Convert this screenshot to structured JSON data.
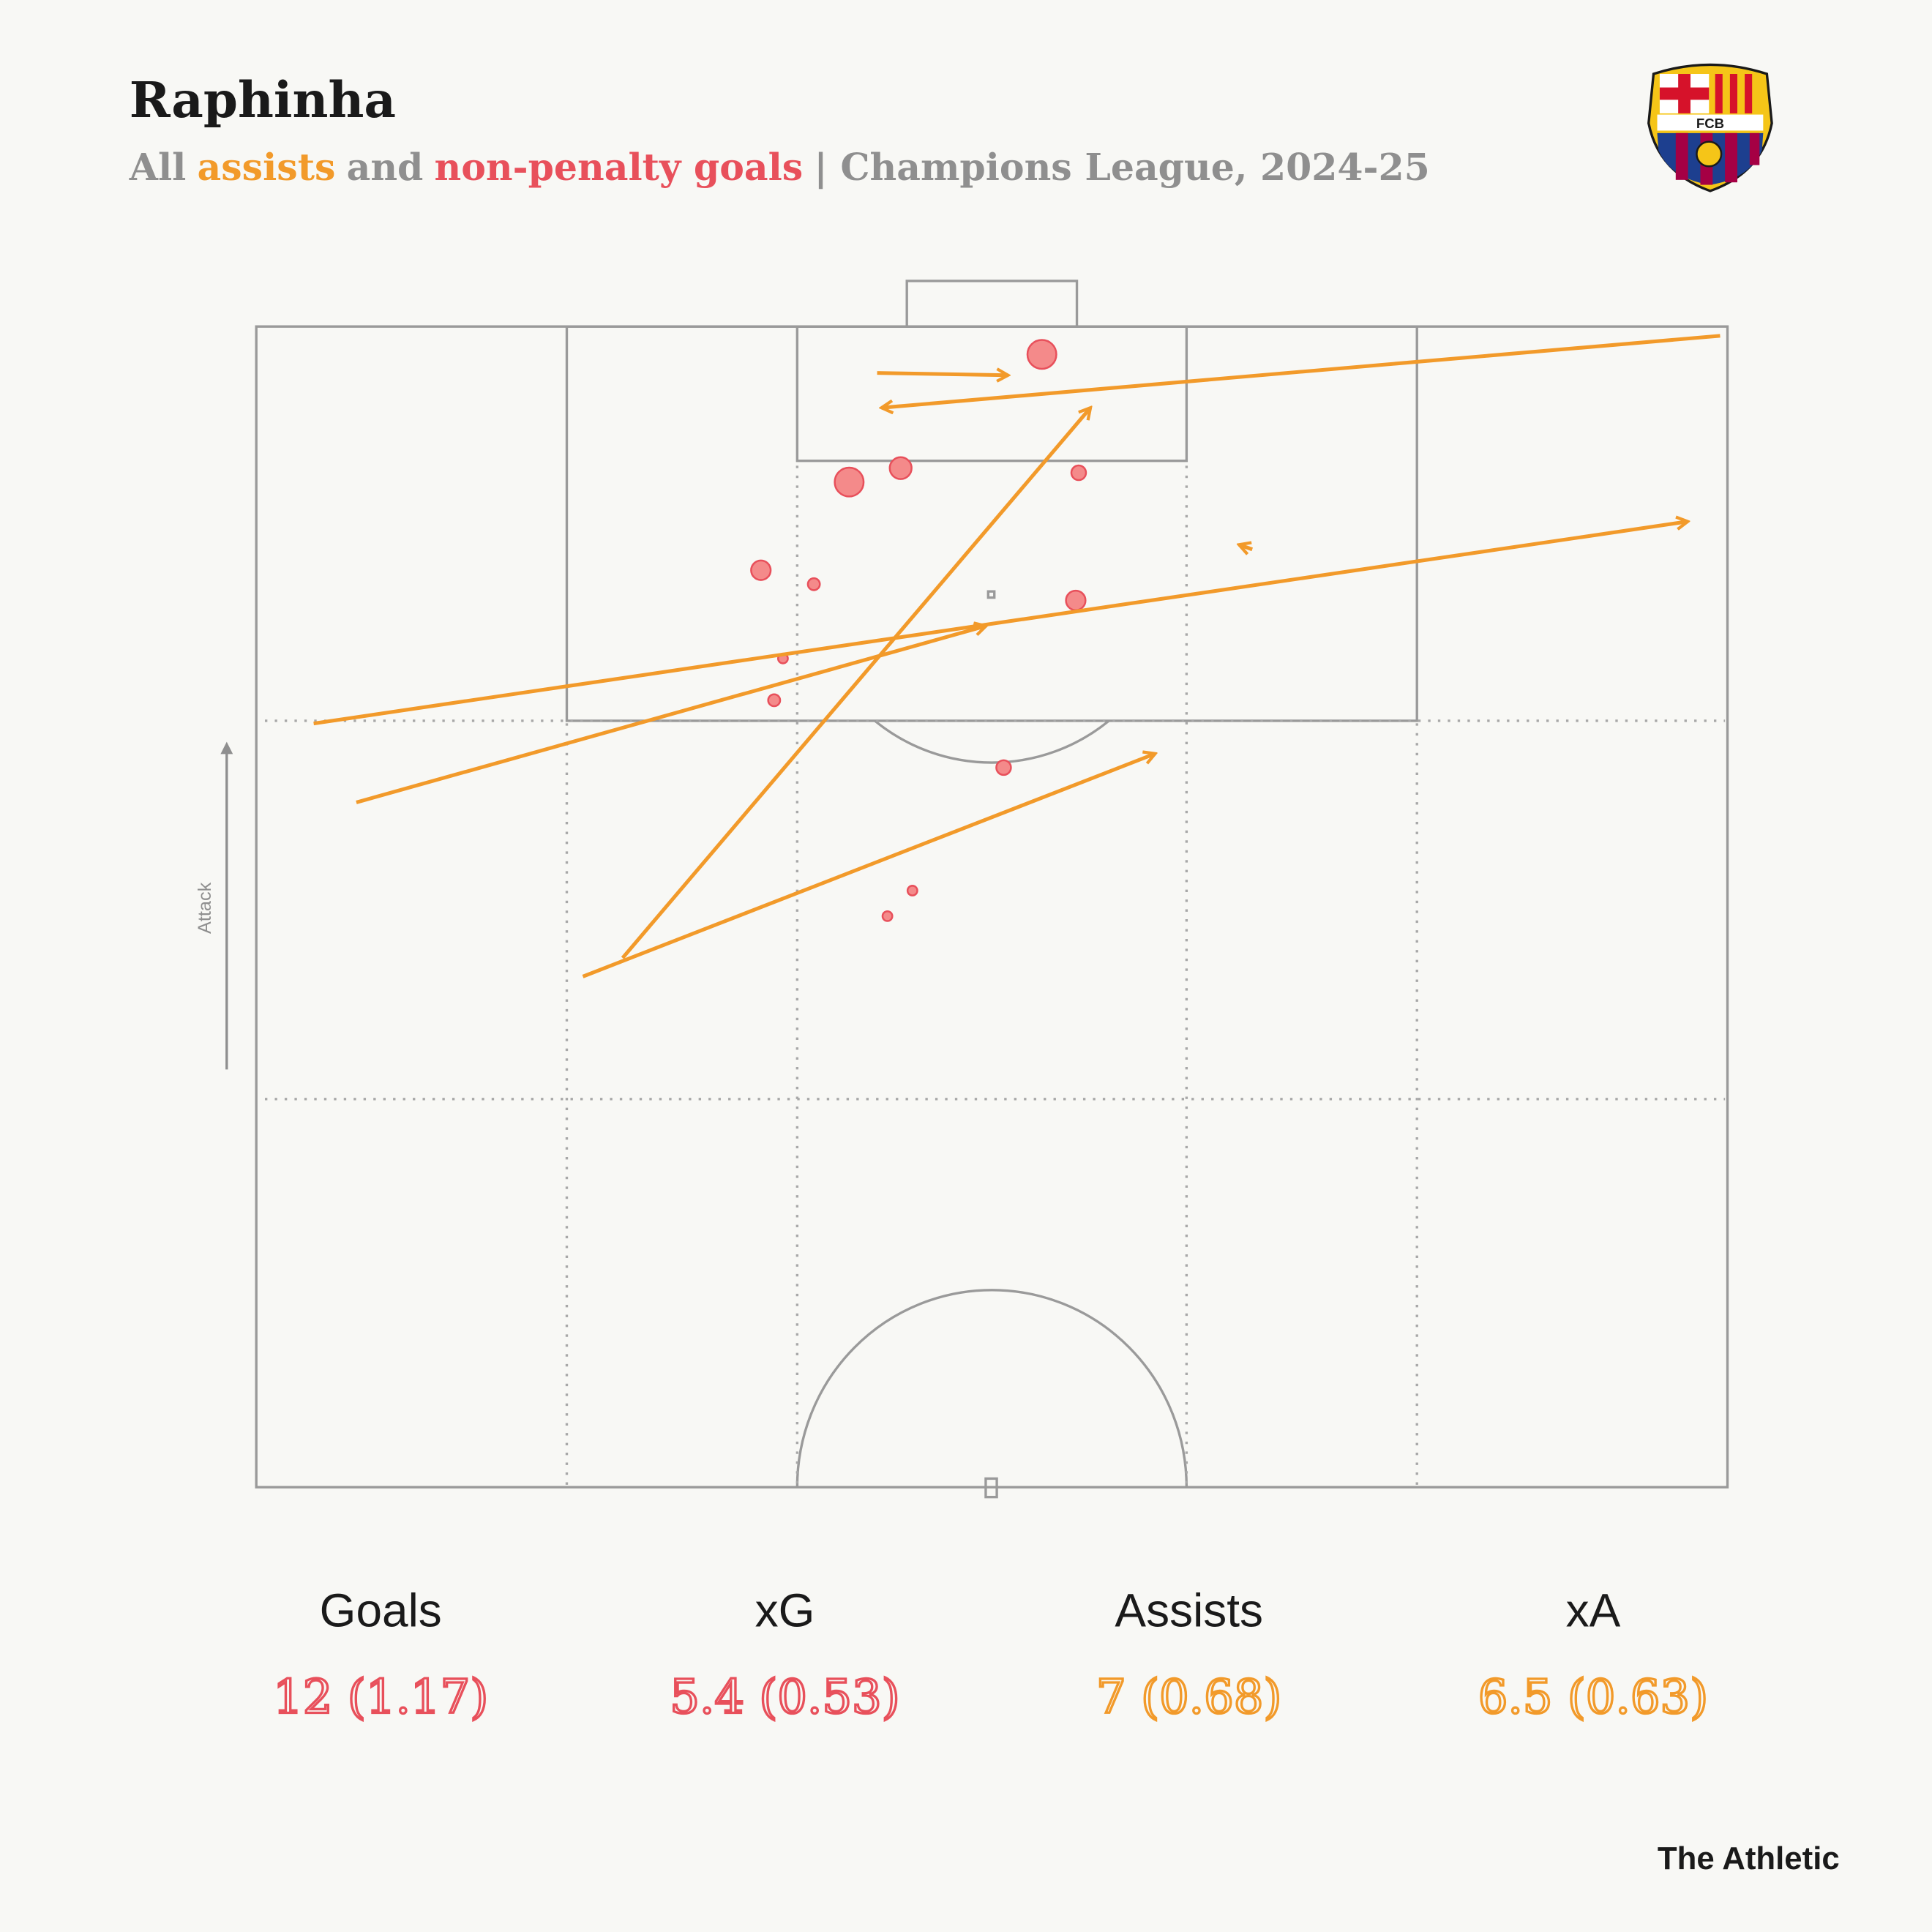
{
  "chart_data": {
    "type": "shotmap",
    "title": "Raphinha",
    "subtitle_parts": [
      {
        "text": "All",
        "color": "#8f8f8f"
      },
      {
        "text": "assists",
        "color": "#f29a2a"
      },
      {
        "text": "and",
        "color": "#8f8f8f"
      },
      {
        "text": "non-penalty goals",
        "color": "#e8505b"
      },
      {
        "text": "| Champions League, 2024-25",
        "color": "#8f8f8f"
      }
    ],
    "logo_text": "FCB",
    "direction_label": "Attack",
    "xlim": [
      0,
      100
    ],
    "ylim": [
      50,
      100
    ],
    "shot_color": "#f48a8a",
    "assist_color": "#f29a2a",
    "shots": [
      {
        "x": 53.4,
        "y": 98.8,
        "xg": 0.7
      },
      {
        "x": 40.3,
        "y": 93.3,
        "xg": 0.7
      },
      {
        "x": 43.8,
        "y": 93.9,
        "xg": 0.4
      },
      {
        "x": 55.9,
        "y": 93.7,
        "xg": 0.18
      },
      {
        "x": 34.3,
        "y": 89.5,
        "xg": 0.32
      },
      {
        "x": 37.9,
        "y": 88.9,
        "xg": 0.12
      },
      {
        "x": 55.7,
        "y": 88.2,
        "xg": 0.32
      },
      {
        "x": 35.8,
        "y": 85.7,
        "xg": 0.08
      },
      {
        "x": 35.2,
        "y": 83.9,
        "xg": 0.12
      },
      {
        "x": 50.8,
        "y": 81.0,
        "xg": 0.18
      },
      {
        "x": 44.6,
        "y": 75.7,
        "xg": 0.08
      },
      {
        "x": 42.9,
        "y": 74.6,
        "xg": 0.08
      }
    ],
    "assists": [
      {
        "start_x": 42.2,
        "start_y": 98.0,
        "end_x": 51.1,
        "end_y": 97.9
      },
      {
        "start_x": 99.5,
        "start_y": 99.6,
        "end_x": 42.5,
        "end_y": 96.5
      },
      {
        "start_x": 24.9,
        "start_y": 72.8,
        "end_x": 56.7,
        "end_y": 96.5
      },
      {
        "start_x": 67.7,
        "start_y": 90.4,
        "end_x": 66.8,
        "end_y": 90.6
      },
      {
        "start_x": 3.9,
        "start_y": 82.9,
        "end_x": 97.3,
        "end_y": 91.6
      },
      {
        "start_x": 6.8,
        "start_y": 79.5,
        "end_x": 49.6,
        "end_y": 87.1
      },
      {
        "start_x": 22.2,
        "start_y": 72.0,
        "end_x": 61.1,
        "end_y": 81.6
      }
    ],
    "stats": [
      {
        "label": "Goals",
        "value": "12 (1.17)",
        "color": "#e8505b"
      },
      {
        "label": "xG",
        "value": "5.4 (0.53)",
        "color": "#e8505b"
      },
      {
        "label": "Assists",
        "value": "7 (0.68)",
        "color": "#f29a2a"
      },
      {
        "label": "xA",
        "value": "6.5 (0.63)",
        "color": "#f29a2a"
      }
    ],
    "source": "The Athletic"
  }
}
